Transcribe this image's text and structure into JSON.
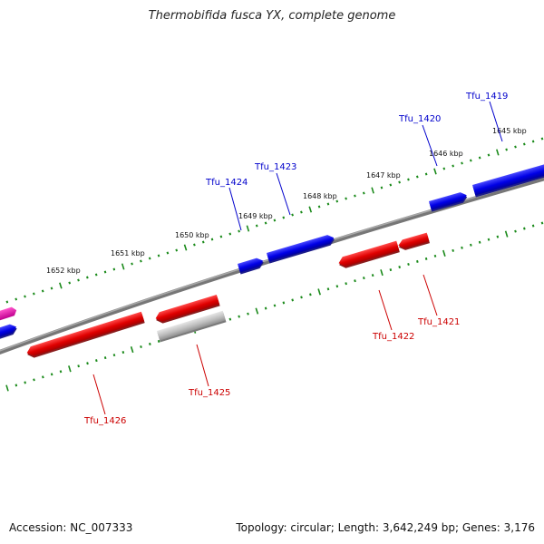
{
  "title": "Thermobifida fusca YX, complete genome",
  "footer": {
    "accession": "Accession: NC_007333",
    "topology": "Topology: circular; Length: 3,642,249 bp; Genes: 3,176"
  },
  "colors": {
    "background": "#ffffff",
    "backbone": "#808080",
    "ticks": "#1a8a1a",
    "plus_strand": "#0000ee",
    "minus_strand": "#ee0000",
    "pseudo": "#b8b8b8",
    "other": "#ee00aa",
    "label_plus": "#0000cc",
    "label_minus": "#cc0000"
  },
  "scale_labels": [
    "1645 kbp",
    "1646 kbp",
    "1647 kbp",
    "1648 kbp",
    "1649 kbp",
    "1650 kbp",
    "1651 kbp",
    "1652 kbp"
  ],
  "genes": [
    {
      "name": "Tfu_1419",
      "strand": "+"
    },
    {
      "name": "Tfu_1420",
      "strand": "+"
    },
    {
      "name": "Tfu_1423",
      "strand": "+"
    },
    {
      "name": "Tfu_1424",
      "strand": "+"
    },
    {
      "name": "Tfu_1421",
      "strand": "-"
    },
    {
      "name": "Tfu_1422",
      "strand": "-"
    },
    {
      "name": "Tfu_1425",
      "strand": "-"
    },
    {
      "name": "Tfu_1426",
      "strand": "-"
    }
  ]
}
